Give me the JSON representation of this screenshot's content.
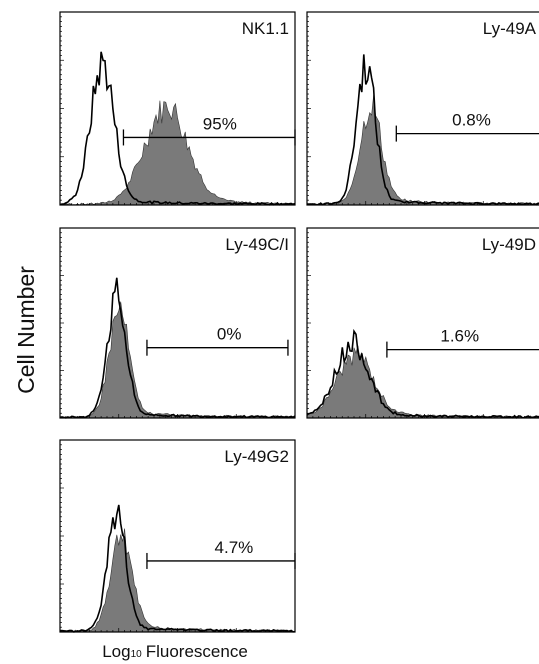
{
  "y_label": "Cell Number",
  "x_label": {
    "base": "Log",
    "sub": "10",
    "rest": "Fluorescence"
  },
  "panels": [
    {
      "title": "NK1.1",
      "gate_label": "95%"
    },
    {
      "title": "Ly-49A",
      "gate_label": "0.8%"
    },
    {
      "title": "Ly-49C/I",
      "gate_label": "0%"
    },
    {
      "title": "Ly-49D",
      "gate_label": "1.6%"
    },
    {
      "title": "Ly-49G2",
      "gate_label": "4.7%"
    }
  ]
}
